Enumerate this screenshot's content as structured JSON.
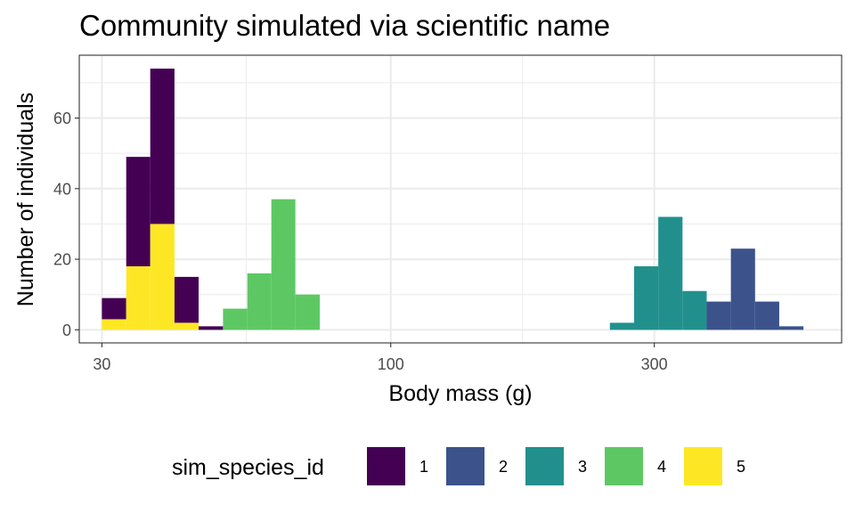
{
  "chart_data": {
    "type": "bar",
    "title": "Community simulated via scientific name",
    "xlabel": "Body mass (g)",
    "ylabel": "Number of individuals",
    "x_scale": "log10",
    "xlim": [
      27.3,
      655
    ],
    "ylim": [
      -3.7,
      77.8
    ],
    "x_ticks": [
      30,
      100,
      300
    ],
    "x_minor_ticks": [
      54.77,
      173.2
    ],
    "y_ticks": [
      0,
      20,
      40,
      60
    ],
    "y_minor_ticks": [
      10,
      30,
      50,
      70
    ],
    "grid": true,
    "stacked": true,
    "legend": {
      "title": "sim_species_id",
      "position": "bottom",
      "entries": [
        {
          "label": "1",
          "color": "#440154"
        },
        {
          "label": "2",
          "color": "#3B528B"
        },
        {
          "label": "3",
          "color": "#21908C"
        },
        {
          "label": "4",
          "color": "#5DC863"
        },
        {
          "label": "5",
          "color": "#FDE725"
        }
      ]
    },
    "bin_edges": [
      30,
      33.2,
      36.7,
      40.6,
      44.9,
      49.7,
      55.0,
      60.8,
      67.2,
      74.4,
      82.3,
      91.0,
      100.6,
      111.3,
      123.1,
      136.2,
      150.6,
      166.6,
      184.3,
      203.8,
      225.4,
      249.3,
      275.8,
      305.0,
      337.4,
      373.2,
      412.8,
      456.6,
      505.0,
      558.6,
      617.9
    ],
    "series": [
      {
        "name": "1",
        "color": "#440154",
        "values": [
          6,
          31,
          44,
          13,
          1,
          0,
          0,
          0,
          0,
          0,
          0,
          0,
          0,
          0,
          0,
          0,
          0,
          0,
          0,
          0,
          0,
          0,
          0,
          0,
          0,
          0,
          0,
          0,
          0,
          0
        ]
      },
      {
        "name": "2",
        "color": "#3B528B",
        "values": [
          0,
          0,
          0,
          0,
          0,
          0,
          0,
          0,
          0,
          0,
          0,
          0,
          0,
          0,
          0,
          0,
          0,
          0,
          0,
          0,
          0,
          0,
          0,
          0,
          0,
          8,
          23,
          8,
          1,
          0
        ]
      },
      {
        "name": "3",
        "color": "#21908C",
        "values": [
          0,
          0,
          0,
          0,
          0,
          0,
          0,
          0,
          0,
          0,
          0,
          0,
          0,
          0,
          0,
          0,
          0,
          0,
          0,
          0,
          0,
          2,
          18,
          32,
          11,
          0,
          0,
          0,
          0,
          0
        ]
      },
      {
        "name": "4",
        "color": "#5DC863",
        "values": [
          0,
          0,
          0,
          0,
          0,
          6,
          16,
          37,
          10,
          0,
          0,
          0,
          0,
          0,
          0,
          0,
          0,
          0,
          0,
          0,
          0,
          0,
          0,
          0,
          0,
          0,
          0,
          0,
          0,
          0
        ]
      },
      {
        "name": "5",
        "color": "#FDE725",
        "values": [
          3,
          18,
          30,
          2,
          0,
          0,
          0,
          0,
          0,
          0,
          0,
          0,
          0,
          0,
          0,
          0,
          0,
          0,
          0,
          0,
          0,
          0,
          0,
          0,
          0,
          0,
          0,
          0,
          0,
          0
        ]
      }
    ]
  }
}
